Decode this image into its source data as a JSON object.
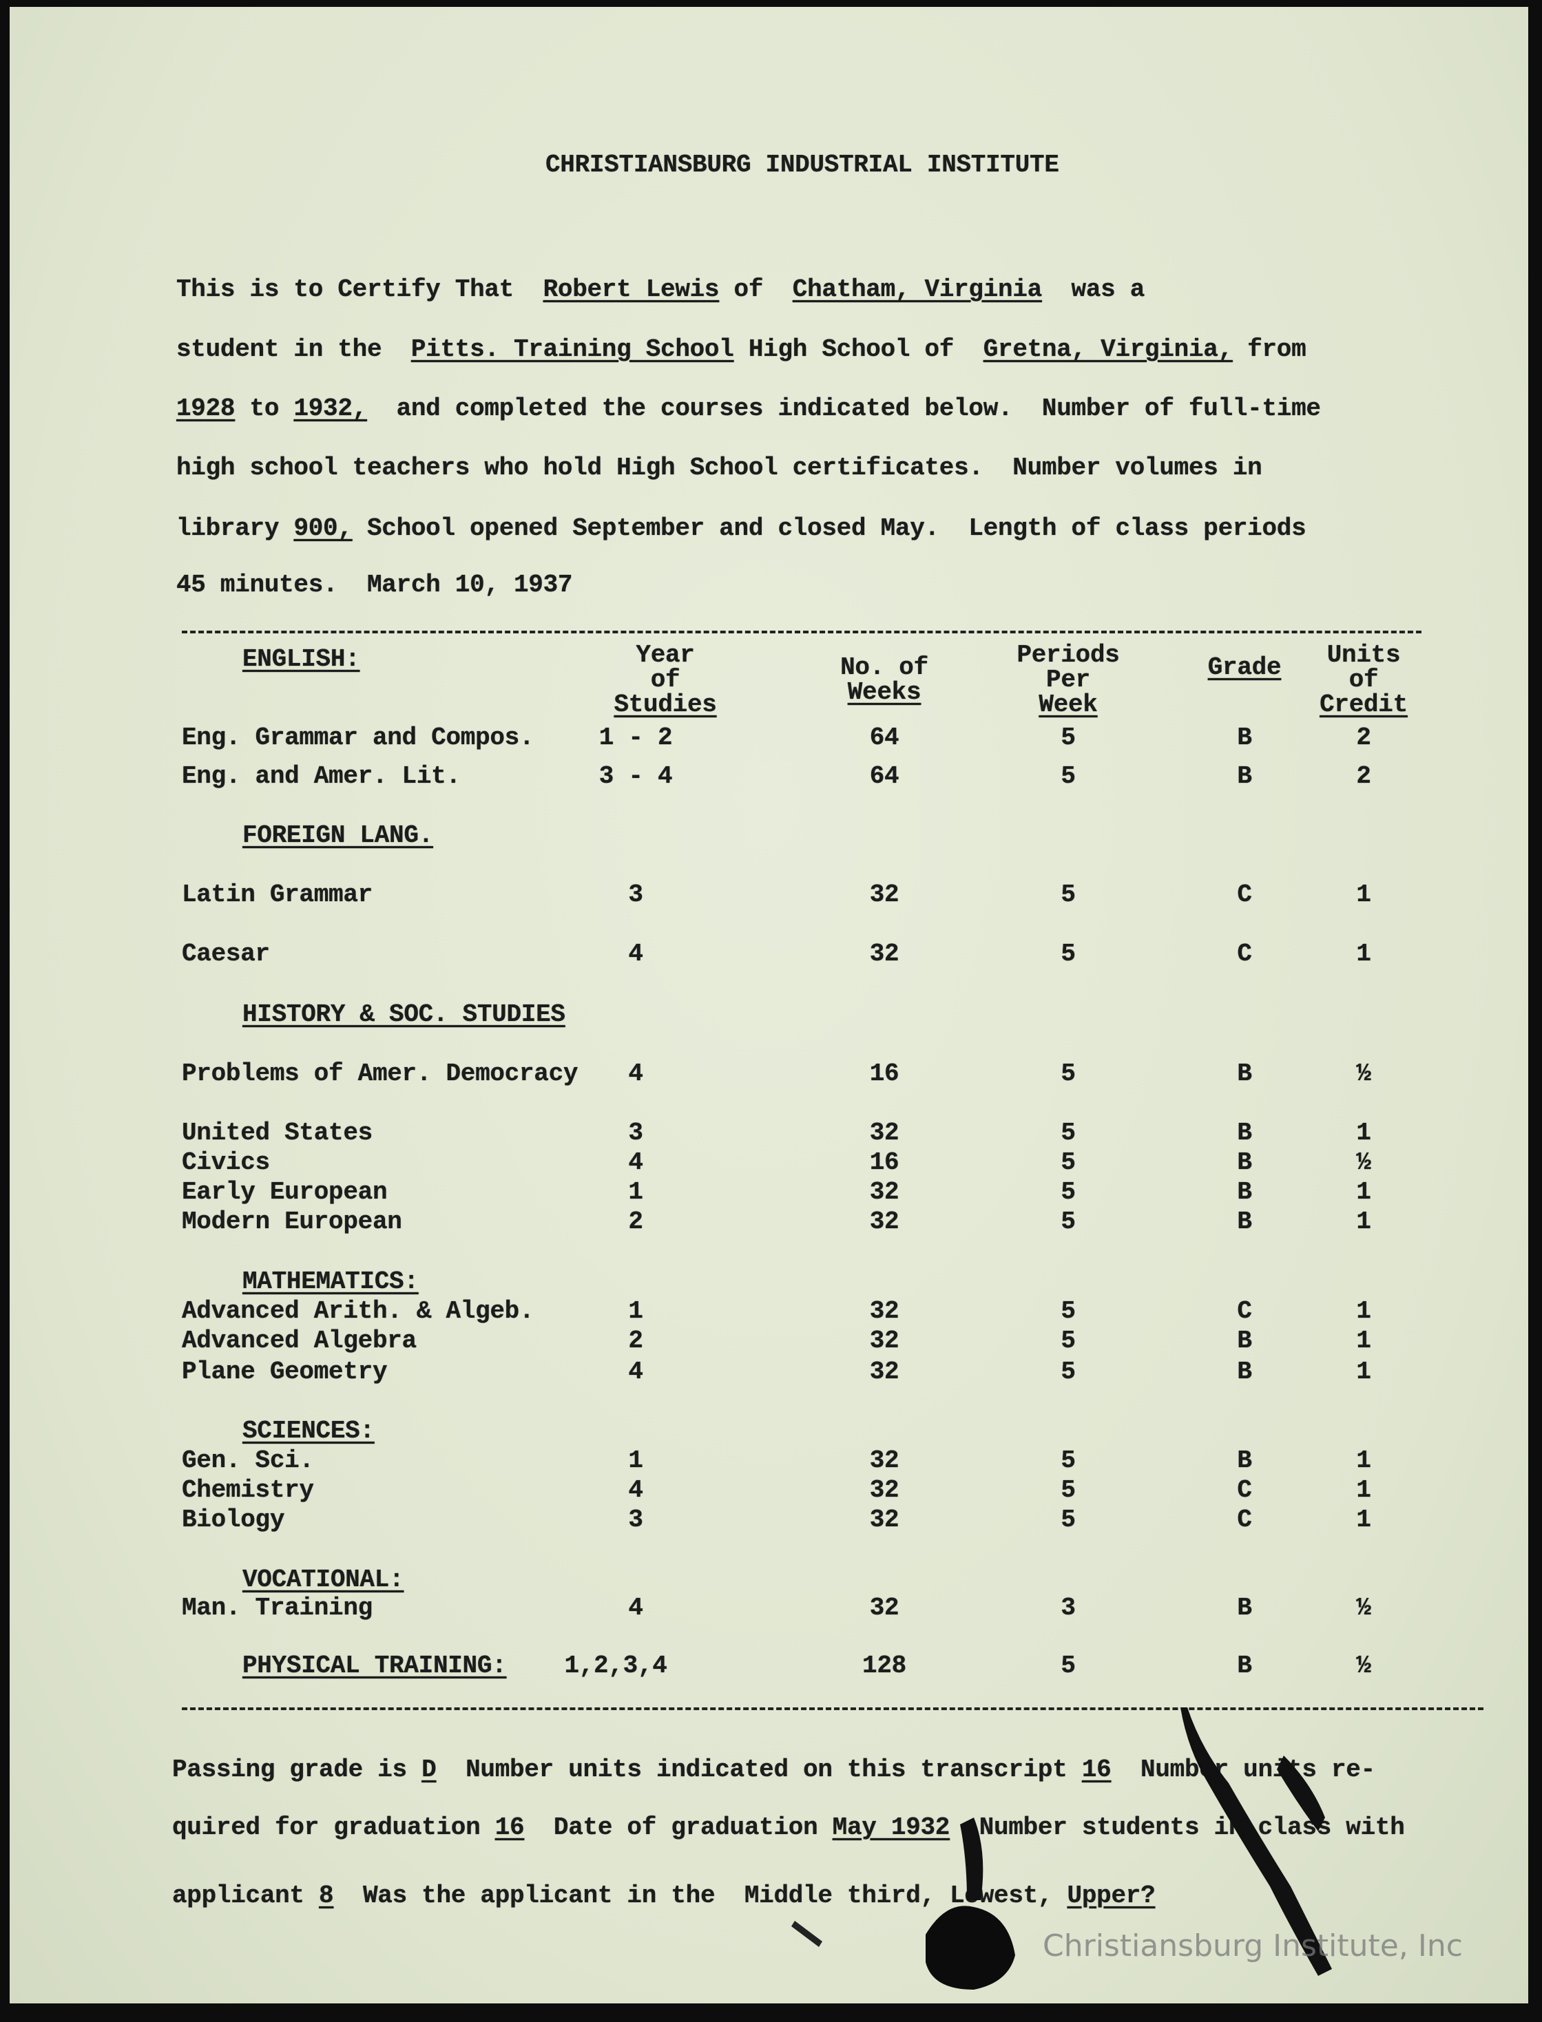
{
  "title": "CHRISTIANSBURG INDUSTRIAL INSTITUTE",
  "certificate_lines": [
    [
      {
        "t": "This is to Certify That  "
      },
      {
        "t": "Robert Lewis",
        "u": true
      },
      {
        "t": " of  "
      },
      {
        "t": "Chatham, Virginia",
        "u": true
      },
      {
        "t": "  was a"
      }
    ],
    [
      {
        "t": "student in the  "
      },
      {
        "t": "Pitts. Training School",
        "u": true
      },
      {
        "t": " High School of  "
      },
      {
        "t": "Gretna, Virginia,",
        "u": true
      },
      {
        "t": " from"
      }
    ],
    [
      {
        "t": "1928",
        "u": true
      },
      {
        "t": " to "
      },
      {
        "t": "1932,",
        "u": true
      },
      {
        "t": "  and completed the courses indicated below.  Number of full-time"
      }
    ],
    [
      {
        "t": "high school teachers who hold High School certificates.  Number volumes in"
      }
    ],
    [
      {
        "t": "library "
      },
      {
        "t": "900,",
        "u": true
      },
      {
        "t": " School opened September and closed May.  Length of class periods"
      }
    ],
    [
      {
        "t": "45 minutes.  March 10, 1937"
      }
    ]
  ],
  "table": {
    "headers": {
      "year": [
        "Year",
        "of",
        "Studies"
      ],
      "weeks": [
        "No. of",
        "Weeks"
      ],
      "periods": [
        "Periods",
        "Per",
        "Week"
      ],
      "grade": [
        "Grade"
      ],
      "units": [
        "Units",
        "of",
        "Credit"
      ]
    },
    "rows": [
      {
        "section": "ENGLISH:"
      },
      {
        "course": "Eng. Grammar and Compos.",
        "year": "1 - 2",
        "weeks": "64",
        "periods": "5",
        "grade": "B",
        "units": "2"
      },
      {
        "course": "Eng. and Amer. Lit.",
        "year": "3 - 4",
        "weeks": "64",
        "periods": "5",
        "grade": "B",
        "units": "2"
      },
      {
        "section": "FOREIGN LANG."
      },
      {
        "course": "Latin Grammar",
        "year": "3",
        "weeks": "32",
        "periods": "5",
        "grade": "C",
        "units": "1"
      },
      {
        "course": "Caesar",
        "year": "4",
        "weeks": "32",
        "periods": "5",
        "grade": "C",
        "units": "1"
      },
      {
        "section": "HISTORY & SOC. STUDIES"
      },
      {
        "course": "Problems of Amer. Democracy",
        "year": "4",
        "weeks": "16",
        "periods": "5",
        "grade": "B",
        "units": "½"
      },
      {
        "course": "United States",
        "year": "3",
        "weeks": "32",
        "periods": "5",
        "grade": "B",
        "units": "1"
      },
      {
        "course": "Civics",
        "year": "4",
        "weeks": "16",
        "periods": "5",
        "grade": "B",
        "units": "½"
      },
      {
        "course": "Early European",
        "year": "1",
        "weeks": "32",
        "periods": "5",
        "grade": "B",
        "units": "1"
      },
      {
        "course": "Modern European",
        "year": "2",
        "weeks": "32",
        "periods": "5",
        "grade": "B",
        "units": "1"
      },
      {
        "section": "MATHEMATICS:"
      },
      {
        "course": "Advanced Arith. & Algeb.",
        "year": "1",
        "weeks": "32",
        "periods": "5",
        "grade": "C",
        "units": "1"
      },
      {
        "course": "Advanced Algebra",
        "year": "2",
        "weeks": "32",
        "periods": "5",
        "grade": "B",
        "units": "1"
      },
      {
        "course": "Plane Geometry",
        "year": "4",
        "weeks": "32",
        "periods": "5",
        "grade": "B",
        "units": "1"
      },
      {
        "section": "SCIENCES:"
      },
      {
        "course": "Gen. Sci.",
        "year": "1",
        "weeks": "32",
        "periods": "5",
        "grade": "B",
        "units": "1"
      },
      {
        "course": "Chemistry",
        "year": "4",
        "weeks": "32",
        "periods": "5",
        "grade": "C",
        "units": "1"
      },
      {
        "course": "Biology",
        "year": "3",
        "weeks": "32",
        "periods": "5",
        "grade": "C",
        "units": "1"
      },
      {
        "section": "VOCATIONAL:"
      },
      {
        "course": "Man. Training",
        "year": "4",
        "weeks": "32",
        "periods": "3",
        "grade": "B",
        "units": "½"
      },
      {
        "section": "PHYSICAL TRAINING:",
        "year": "1,2,3,4",
        "weeks": "128",
        "periods": "5",
        "grade": "B",
        "units": "½"
      }
    ]
  },
  "footer_lines": [
    [
      {
        "t": "Passing grade is "
      },
      {
        "t": "D",
        "u": true
      },
      {
        "t": "  Number units indicated on this transcript "
      },
      {
        "t": "16",
        "u": true
      },
      {
        "t": "  Number units re-"
      }
    ],
    [
      {
        "t": "quired for graduation "
      },
      {
        "t": "16",
        "u": true
      },
      {
        "t": "  Date of graduation "
      },
      {
        "t": "May 1932",
        "u": true
      },
      {
        "t": "  Number students in class with"
      }
    ],
    [
      {
        "t": "applicant "
      },
      {
        "t": "8",
        "u": true
      },
      {
        "t": "  Was the applicant in the  Middle third, Lowest, "
      },
      {
        "t": "Upper?",
        "u": true
      }
    ]
  ],
  "watermark": "Christiansburg Institute, Inc"
}
